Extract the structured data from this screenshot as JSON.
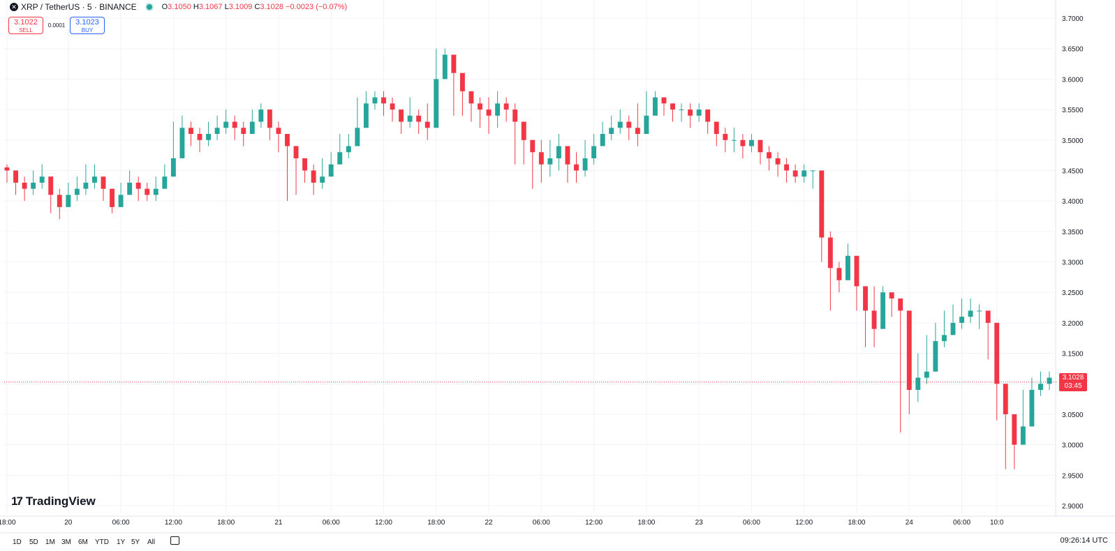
{
  "legend": {
    "symbol_title": "XRP / TetherUS · 5 · BINANCE",
    "open_label": "O",
    "open": "3.1050",
    "high_label": "H",
    "high": "3.1067",
    "low_label": "L",
    "low": "3.1009",
    "close_label": "C",
    "close": "3.1028",
    "change": "−0.0023 (−0.07%)"
  },
  "trade": {
    "sell_price": "3.1022",
    "sell_label": "SELL",
    "spread": "0.0001",
    "buy_price": "3.1023",
    "buy_label": "BUY"
  },
  "brand": {
    "name": "TradingView"
  },
  "last_price": {
    "value": "3.1028",
    "countdown": "03:45"
  },
  "time_ranges": [
    "1D",
    "5D",
    "1M",
    "3M",
    "6M",
    "YTD",
    "1Y",
    "5Y",
    "All"
  ],
  "utc_time": "09:26:14 UTC",
  "colors": {
    "up": "#26a69a",
    "down": "#f23645",
    "grid": "#f0f3fa",
    "text": "#131722"
  },
  "icons": {
    "symbol": "xrp-coin-icon",
    "status": "live-dot-icon",
    "calendar": "calendar-icon",
    "settings": "settings-gear-icon"
  },
  "chart_data": {
    "type": "line",
    "title": "",
    "xlabel": "",
    "ylabel": "",
    "ylim": [
      2.88,
      3.72
    ],
    "y_ticks": [
      "2.9000",
      "2.9500",
      "3.0000",
      "3.0500",
      "3.1000",
      "3.1500",
      "3.2000",
      "3.2500",
      "3.3000",
      "3.3500",
      "3.4000",
      "3.4500",
      "3.5000",
      "3.5500",
      "3.6000",
      "3.6500",
      "3.7000"
    ],
    "x_tick_labels": [
      "18:00",
      "20",
      "06:00",
      "12:00",
      "18:00",
      "21",
      "06:00",
      "12:00",
      "18:00",
      "22",
      "06:00",
      "12:00",
      "18:00",
      "23",
      "06:00",
      "12:00",
      "18:00",
      "24",
      "06:00",
      "10:0"
    ],
    "x_tick_index": [
      0,
      7,
      13,
      19,
      25,
      31,
      37,
      43,
      49,
      55,
      61,
      67,
      73,
      79,
      85,
      91,
      97,
      103,
      109,
      113
    ],
    "grid": true,
    "series": [
      {
        "values": [
          3.45,
          3.43,
          3.42,
          3.43,
          3.44,
          3.41,
          3.39,
          3.41,
          3.42,
          3.43,
          3.44,
          3.42,
          3.39,
          3.41,
          3.43,
          3.42,
          3.41,
          3.42,
          3.44,
          3.47,
          3.52,
          3.51,
          3.5,
          3.51,
          3.52,
          3.53,
          3.52,
          3.51,
          3.53,
          3.55,
          3.52,
          3.51,
          3.49,
          3.47,
          3.45,
          3.43,
          3.44,
          3.46,
          3.48,
          3.49,
          3.52,
          3.56,
          3.57,
          3.56,
          3.55,
          3.53,
          3.54,
          3.53,
          3.52,
          3.6,
          3.64,
          3.61,
          3.58,
          3.56,
          3.55,
          3.54,
          3.56,
          3.55,
          3.53,
          3.5,
          3.48,
          3.46,
          3.47,
          3.49,
          3.46,
          3.45,
          3.47,
          3.49,
          3.51,
          3.52,
          3.53,
          3.52,
          3.51,
          3.54,
          3.57,
          3.56,
          3.55,
          3.55,
          3.54,
          3.55,
          3.53,
          3.51,
          3.5,
          3.5,
          3.49,
          3.5,
          3.48,
          3.47,
          3.46,
          3.45,
          3.44,
          3.45,
          3.45,
          3.34,
          3.29,
          3.27,
          3.31,
          3.26,
          3.22,
          3.19,
          3.25,
          3.24,
          3.22,
          3.09,
          3.11,
          3.12,
          3.17,
          3.18,
          3.2,
          3.21,
          3.22,
          3.22,
          3.2,
          3.1,
          3.05,
          3.0,
          3.03,
          3.09,
          3.1,
          3.11
        ],
        "lows": [
          3.43,
          3.41,
          3.4,
          3.41,
          3.42,
          3.38,
          3.37,
          3.39,
          3.4,
          3.41,
          3.42,
          3.4,
          3.38,
          3.39,
          3.41,
          3.4,
          3.4,
          3.4,
          3.42,
          3.45,
          3.48,
          3.49,
          3.48,
          3.49,
          3.5,
          3.51,
          3.5,
          3.49,
          3.51,
          3.52,
          3.5,
          3.48,
          3.4,
          3.41,
          3.43,
          3.41,
          3.42,
          3.44,
          3.46,
          3.47,
          3.5,
          3.54,
          3.55,
          3.54,
          3.53,
          3.51,
          3.52,
          3.51,
          3.5,
          3.56,
          3.61,
          3.54,
          3.54,
          3.53,
          3.52,
          3.51,
          3.52,
          3.53,
          3.46,
          3.46,
          3.42,
          3.43,
          3.44,
          3.45,
          3.43,
          3.43,
          3.44,
          3.46,
          3.49,
          3.5,
          3.51,
          3.5,
          3.49,
          3.52,
          3.55,
          3.54,
          3.53,
          3.53,
          3.52,
          3.53,
          3.51,
          3.49,
          3.48,
          3.48,
          3.47,
          3.48,
          3.46,
          3.45,
          3.44,
          3.43,
          3.43,
          3.43,
          3.42,
          3.3,
          3.22,
          3.25,
          3.28,
          3.22,
          3.16,
          3.16,
          3.22,
          3.21,
          3.02,
          3.05,
          3.07,
          3.1,
          3.14,
          3.16,
          3.18,
          3.19,
          3.2,
          3.19,
          3.14,
          3.04,
          2.96,
          2.96,
          3.0,
          3.06,
          3.08,
          3.09
        ],
        "highs": [
          3.46,
          3.45,
          3.44,
          3.45,
          3.46,
          3.44,
          3.42,
          3.43,
          3.44,
          3.46,
          3.46,
          3.44,
          3.42,
          3.43,
          3.45,
          3.44,
          3.43,
          3.44,
          3.46,
          3.53,
          3.54,
          3.53,
          3.52,
          3.53,
          3.54,
          3.55,
          3.54,
          3.53,
          3.55,
          3.56,
          3.54,
          3.53,
          3.51,
          3.49,
          3.47,
          3.46,
          3.47,
          3.48,
          3.51,
          3.51,
          3.57,
          3.58,
          3.58,
          3.58,
          3.57,
          3.55,
          3.57,
          3.55,
          3.56,
          3.65,
          3.65,
          3.63,
          3.6,
          3.58,
          3.57,
          3.57,
          3.58,
          3.57,
          3.56,
          3.53,
          3.5,
          3.5,
          3.5,
          3.51,
          3.48,
          3.48,
          3.5,
          3.51,
          3.53,
          3.54,
          3.55,
          3.54,
          3.56,
          3.58,
          3.58,
          3.57,
          3.56,
          3.56,
          3.56,
          3.56,
          3.55,
          3.53,
          3.52,
          3.52,
          3.51,
          3.51,
          3.5,
          3.49,
          3.48,
          3.47,
          3.46,
          3.46,
          3.45,
          3.37,
          3.35,
          3.3,
          3.33,
          3.29,
          3.25,
          3.26,
          3.26,
          3.25,
          3.23,
          3.15,
          3.15,
          3.18,
          3.2,
          3.22,
          3.23,
          3.24,
          3.24,
          3.23,
          3.21,
          3.12,
          3.07,
          3.04,
          3.09,
          3.11,
          3.12,
          3.12
        ]
      }
    ]
  }
}
